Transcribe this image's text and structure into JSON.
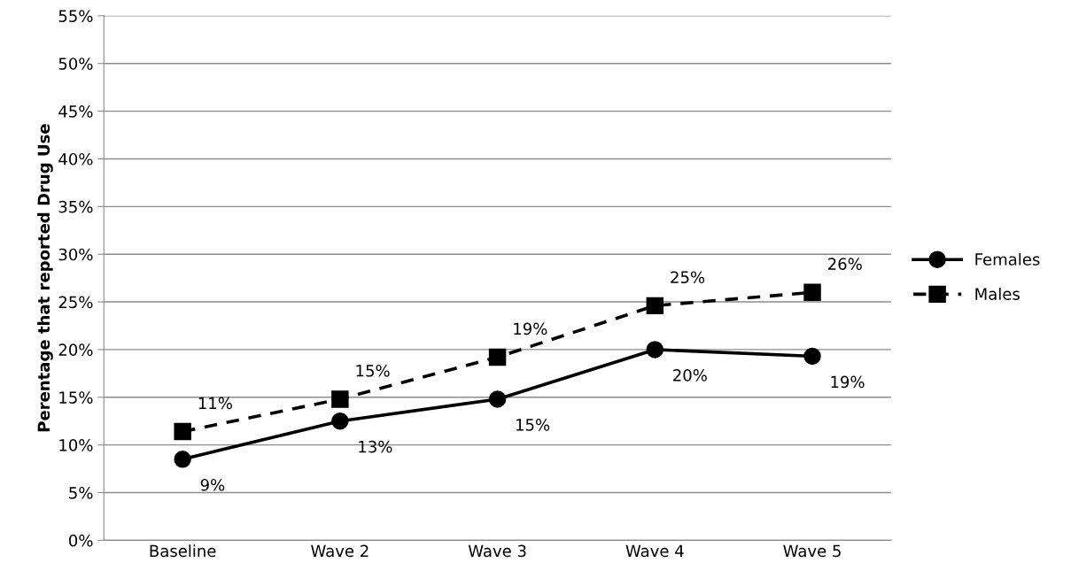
{
  "chart_data": {
    "type": "line",
    "ylabel": "Perentage that reported Drug Use",
    "categories": [
      "Baseline",
      "Wave 2",
      "Wave 3",
      "Wave 4",
      "Wave 5"
    ],
    "series": [
      {
        "name": "Females",
        "color": "#000000",
        "marker": "circle",
        "line_style": "solid",
        "values": [
          8.5,
          12.5,
          14.8,
          20.0,
          19.3
        ],
        "value_labels": [
          "9%",
          "13%",
          "15%",
          "20%",
          "19%"
        ]
      },
      {
        "name": "Males",
        "color": "#000000",
        "marker": "square",
        "line_style": "dashed",
        "values": [
          11.4,
          14.8,
          19.2,
          24.6,
          26.0
        ],
        "value_labels": [
          "11%",
          "15%",
          "19%",
          "25%",
          "26%"
        ]
      }
    ],
    "ylim": [
      0,
      55
    ],
    "yticks": [
      {
        "value": 0,
        "label": "0%"
      },
      {
        "value": 5,
        "label": "5%"
      },
      {
        "value": 10,
        "label": "10%"
      },
      {
        "value": 15,
        "label": "15%"
      },
      {
        "value": 20,
        "label": "20%"
      },
      {
        "value": 25,
        "label": "25%"
      },
      {
        "value": 30,
        "label": "30%"
      },
      {
        "value": 35,
        "label": "35%"
      },
      {
        "value": 40,
        "label": "40%"
      },
      {
        "value": 45,
        "label": "45%"
      },
      {
        "value": 50,
        "label": "50%"
      },
      {
        "value": 55,
        "label": "55%"
      }
    ],
    "grid": "y",
    "legend": "right"
  }
}
